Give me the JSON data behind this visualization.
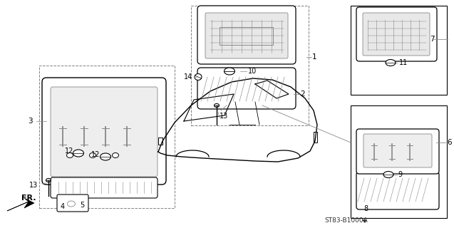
{
  "bg_color": "#ffffff",
  "line_color": "#000000",
  "gray_color": "#888888",
  "diagram_code": "ST83-B1000A",
  "fr_label": "FR."
}
